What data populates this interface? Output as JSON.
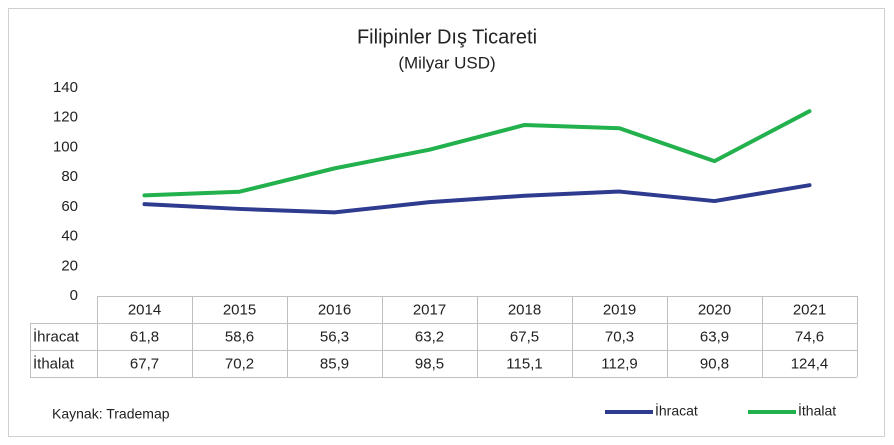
{
  "chart_data": {
    "type": "line",
    "title": "Filipinler Dış Ticareti",
    "subtitle": "(Milyar USD)",
    "categories": [
      "2014",
      "2015",
      "2016",
      "2017",
      "2018",
      "2019",
      "2020",
      "2021"
    ],
    "series": [
      {
        "name": "İhracat",
        "color": "#2e3b8f",
        "values": [
          61.8,
          58.6,
          56.3,
          63.2,
          67.5,
          70.3,
          63.9,
          74.6
        ],
        "value_labels": [
          "61,8",
          "58,6",
          "56,3",
          "63,2",
          "67,5",
          "70,3",
          "63,9",
          "74,6"
        ]
      },
      {
        "name": "İthalat",
        "color": "#22b14c",
        "values": [
          67.7,
          70.2,
          85.9,
          98.5,
          115.1,
          112.9,
          90.8,
          124.4
        ],
        "value_labels": [
          "67,7",
          "70,2",
          "85,9",
          "98,5",
          "115,1",
          "112,9",
          "90,8",
          "124,4"
        ]
      }
    ],
    "ylim": [
      0,
      140
    ],
    "yticks": [
      0,
      20,
      40,
      60,
      80,
      100,
      120,
      140
    ],
    "legend": "bottom-right",
    "source": "Kaynak: Trademap"
  }
}
